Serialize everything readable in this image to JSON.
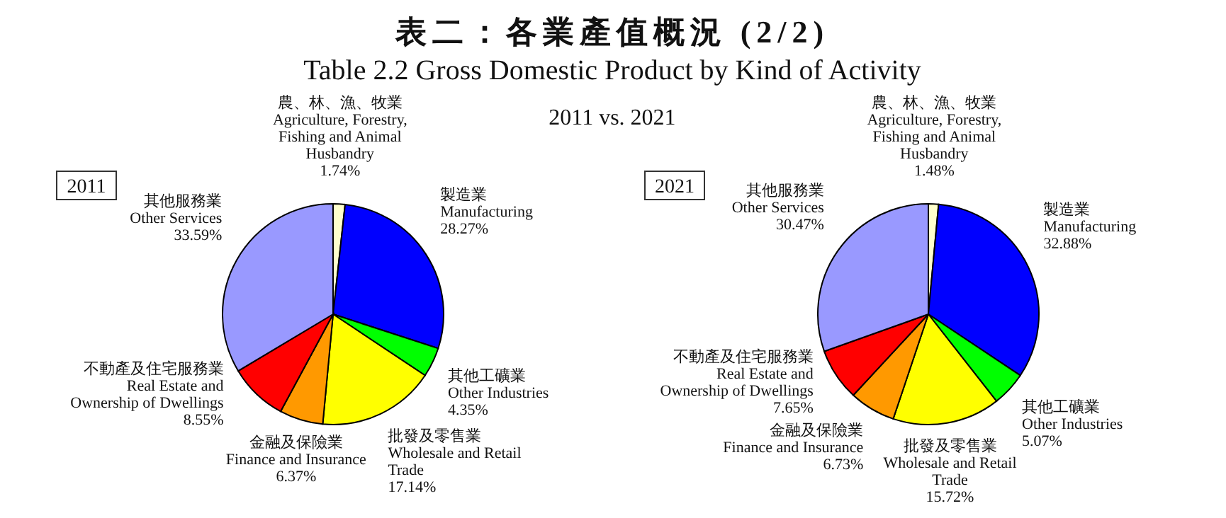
{
  "chart_data": [
    {
      "type": "other",
      "title": "表二：各業產值概況 (2/2)",
      "subtitle": "Table 2.2  Gross Domestic Product by Kind of Activity",
      "annotations": [
        "2011 vs. 2021"
      ]
    },
    {
      "type": "pie",
      "title": "2011",
      "categories": [
        "農、林、漁、牧業 Agriculture, Forestry, Fishing and Animal Husbandry",
        "製造業 Manufacturing",
        "其他工礦業 Other Industries",
        "批發及零售業 Wholesale and Retail Trade",
        "金融及保險業 Finance and Insurance",
        "不動產及住宅服務業 Real Estate and Ownership of Dwellings",
        "其他服務業 Other Services"
      ],
      "values": [
        1.74,
        28.27,
        4.35,
        17.14,
        6.37,
        8.55,
        33.59
      ],
      "value_labels": [
        "1.74%",
        "28.27%",
        "4.35%",
        "17.14%",
        "6.37%",
        "8.55%",
        "33.59%"
      ],
      "colors": [
        "#ffffcc",
        "#0000ff",
        "#00ff00",
        "#ffff00",
        "#ff9900",
        "#ff0000",
        "#9999ff"
      ]
    },
    {
      "type": "pie",
      "title": "2021",
      "categories": [
        "農、林、漁、牧業 Agriculture, Forestry, Fishing and Animal Husbandry",
        "製造業 Manufacturing",
        "其他工礦業 Other Industries",
        "批發及零售業 Wholesale and Retail Trade",
        "金融及保險業 Finance and Insurance",
        "不動產及住宅服務業 Real Estate and Ownership of Dwellings",
        "其他服務業 Other Services"
      ],
      "values": [
        1.48,
        32.88,
        5.07,
        15.72,
        6.73,
        7.65,
        30.47
      ],
      "value_labels": [
        "1.48%",
        "32.88%",
        "5.07%",
        "15.72%",
        "6.73%",
        "7.65%",
        "30.47%"
      ],
      "colors": [
        "#ffffcc",
        "#0000ff",
        "#00ff00",
        "#ffff00",
        "#ff9900",
        "#ff0000",
        "#9999ff"
      ]
    }
  ]
}
